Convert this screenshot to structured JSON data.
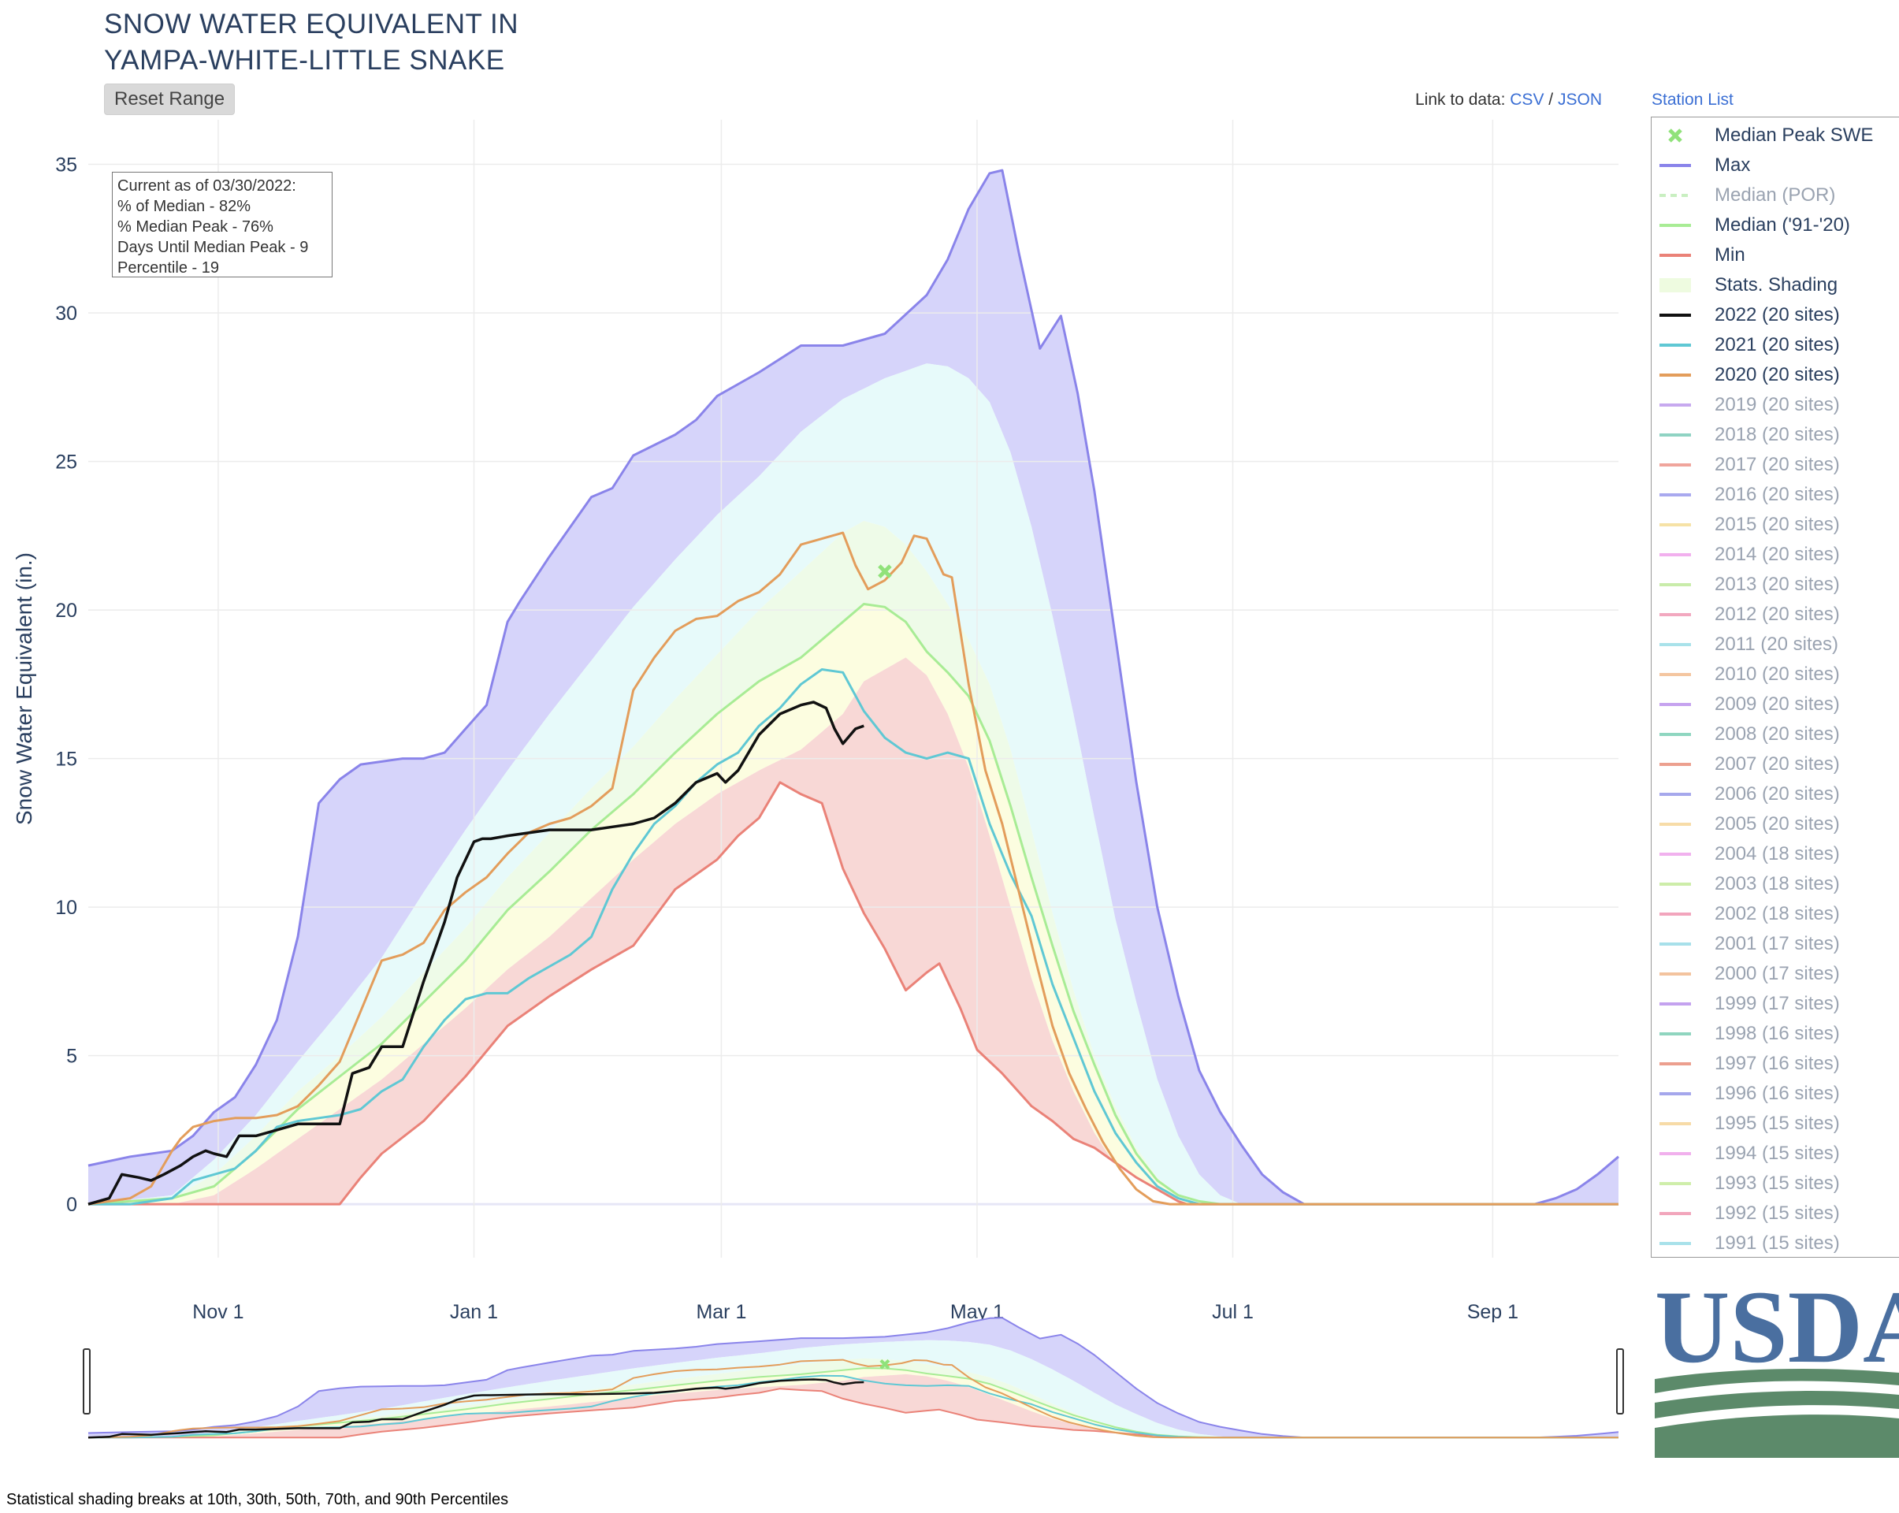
{
  "title_lines": [
    "SNOW WATER EQUIVALENT IN",
    "YAMPA-WHITE-LITTLE SNAKE"
  ],
  "reset_label": "Reset Range",
  "links": {
    "prefix": "Link to data:",
    "csv": "CSV",
    "sep": "/",
    "json": "JSON",
    "station_list": "Station List"
  },
  "stats": {
    "line1": "Current as of 03/30/2022:",
    "line2": "% of Median - 82%",
    "line3": "% Median Peak - 76%",
    "line4": "Days Until Median Peak - 9",
    "line5": "Percentile - 19"
  },
  "footnote": "Statistical shading breaks at 10th, 30th, 50th, 70th, and 90th Percentiles",
  "logo_text": "USDA",
  "colors": {
    "max": "#8a84ea",
    "min": "#ea8278",
    "median": "#a8ec95",
    "y2022": "#111111",
    "y2021": "#5fc8d4",
    "y2020": "#e39d5b",
    "shade_max": "#d6d4fa",
    "shade_90": "#e7fafa",
    "shade_70": "#eefbe8",
    "shade_50": "#fcfde0",
    "shade_30": "#f8d8d6",
    "usda_blue": "#4a6fa0",
    "usda_green": "#5c8a6a"
  },
  "legend": [
    {
      "label": "Median Peak SWE",
      "kind": "marker",
      "color": "#90e27a",
      "active": true
    },
    {
      "label": "Max",
      "kind": "line",
      "color": "#8a84ea",
      "active": true
    },
    {
      "label": "Median (POR)",
      "kind": "dash",
      "color": "#c9efc1",
      "active": false
    },
    {
      "label": "Median ('91-'20)",
      "kind": "line",
      "color": "#a8ec95",
      "active": true
    },
    {
      "label": "Min",
      "kind": "line",
      "color": "#ea8278",
      "active": true
    },
    {
      "label": "Stats. Shading",
      "kind": "fill",
      "color": "#eefbe0",
      "active": true
    },
    {
      "label": "2022 (20 sites)",
      "kind": "line",
      "color": "#111111",
      "active": true
    },
    {
      "label": "2021 (20 sites)",
      "kind": "line",
      "color": "#5fc8d4",
      "active": true
    },
    {
      "label": "2020 (20 sites)",
      "kind": "line",
      "color": "#e39d5b",
      "active": true
    },
    {
      "label": "2019 (20 sites)",
      "kind": "line",
      "color": "#c7a9ef",
      "active": false
    },
    {
      "label": "2018 (20 sites)",
      "kind": "line",
      "color": "#8fd3c3",
      "active": false
    },
    {
      "label": "2017 (20 sites)",
      "kind": "line",
      "color": "#f0a59c",
      "active": false
    },
    {
      "label": "2016 (20 sites)",
      "kind": "line",
      "color": "#a9a9ef",
      "active": false
    },
    {
      "label": "2015 (20 sites)",
      "kind": "line",
      "color": "#f6e2a6",
      "active": false
    },
    {
      "label": "2014 (20 sites)",
      "kind": "line",
      "color": "#f2b0ee",
      "active": false
    },
    {
      "label": "2013 (20 sites)",
      "kind": "line",
      "color": "#c9ecaa",
      "active": false
    },
    {
      "label": "2012 (20 sites)",
      "kind": "line",
      "color": "#f2a8bf",
      "active": false
    },
    {
      "label": "2011 (20 sites)",
      "kind": "line",
      "color": "#a9e2ea",
      "active": false
    },
    {
      "label": "2010 (20 sites)",
      "kind": "line",
      "color": "#f4c6a0",
      "active": false
    },
    {
      "label": "2009 (20 sites)",
      "kind": "line",
      "color": "#c6a3ef",
      "active": false
    },
    {
      "label": "2008 (20 sites)",
      "kind": "line",
      "color": "#8fd6c0",
      "active": false
    },
    {
      "label": "2007 (20 sites)",
      "kind": "line",
      "color": "#eca08f",
      "active": false
    },
    {
      "label": "2006 (20 sites)",
      "kind": "line",
      "color": "#a6a8ec",
      "active": false
    },
    {
      "label": "2005 (20 sites)",
      "kind": "line",
      "color": "#f7dca8",
      "active": false
    },
    {
      "label": "2004 (18 sites)",
      "kind": "line",
      "color": "#f1b1ee",
      "active": false
    },
    {
      "label": "2003 (18 sites)",
      "kind": "line",
      "color": "#cdeda9",
      "active": false
    },
    {
      "label": "2002 (18 sites)",
      "kind": "line",
      "color": "#f2a5bd",
      "active": false
    },
    {
      "label": "2001 (17 sites)",
      "kind": "line",
      "color": "#a7e0ea",
      "active": false
    },
    {
      "label": "2000 (17 sites)",
      "kind": "line",
      "color": "#f3c39e",
      "active": false
    },
    {
      "label": "1999 (17 sites)",
      "kind": "line",
      "color": "#c4a2ef",
      "active": false
    },
    {
      "label": "1998 (16 sites)",
      "kind": "line",
      "color": "#8fd5bf",
      "active": false
    },
    {
      "label": "1997 (16 sites)",
      "kind": "line",
      "color": "#ec9f8e",
      "active": false
    },
    {
      "label": "1996 (16 sites)",
      "kind": "line",
      "color": "#a5a7ec",
      "active": false
    },
    {
      "label": "1995 (15 sites)",
      "kind": "line",
      "color": "#f7dba7",
      "active": false
    },
    {
      "label": "1994 (15 sites)",
      "kind": "line",
      "color": "#f1b0ed",
      "active": false
    },
    {
      "label": "1993 (15 sites)",
      "kind": "line",
      "color": "#cfeeaa",
      "active": false
    },
    {
      "label": "1992 (15 sites)",
      "kind": "line",
      "color": "#f2a6bc",
      "active": false
    },
    {
      "label": "1991 (15 sites)",
      "kind": "line",
      "color": "#a8e1ea",
      "active": false
    }
  ],
  "chart_data": {
    "type": "line",
    "title": "SNOW WATER EQUIVALENT IN YAMPA-WHITE-LITTLE SNAKE",
    "xlabel": "",
    "ylabel": "Snow Water Equivalent (in.)",
    "x_domain_days": [
      0,
      365
    ],
    "ylim": [
      -1.8,
      36.5
    ],
    "yticks": [
      0,
      5,
      10,
      15,
      20,
      25,
      30,
      35
    ],
    "xticks": [
      {
        "label": "Nov 1",
        "day": 31
      },
      {
        "label": "Jan 1",
        "day": 92
      },
      {
        "label": "Mar 1",
        "day": 151
      },
      {
        "label": "May 1",
        "day": 212
      },
      {
        "label": "Jul 1",
        "day": 273
      },
      {
        "label": "Sep 1",
        "day": 335
      }
    ],
    "grid": true,
    "legend_position": "right",
    "median_peak": {
      "day": 190,
      "value": 21.3
    },
    "series": [
      {
        "name": "Max",
        "x": [
          0,
          10,
          20,
          25,
          30,
          35,
          40,
          45,
          50,
          55,
          60,
          65,
          70,
          75,
          80,
          85,
          90,
          95,
          100,
          103,
          110,
          115,
          120,
          125,
          130,
          140,
          145,
          150,
          160,
          170,
          180,
          190,
          200,
          205,
          210,
          215,
          218,
          222,
          227,
          232,
          236,
          240,
          245,
          250,
          255,
          260,
          265,
          270,
          275,
          280,
          285,
          290,
          295,
          305,
          315,
          325,
          345,
          350,
          355,
          360,
          365
        ],
        "y": [
          1.3,
          1.6,
          1.8,
          2.3,
          3.1,
          3.6,
          4.7,
          6.2,
          9.0,
          13.5,
          14.3,
          14.8,
          14.9,
          15.0,
          15.0,
          15.2,
          16.0,
          16.8,
          19.6,
          20.3,
          21.8,
          22.8,
          23.8,
          24.1,
          25.2,
          25.9,
          26.4,
          27.2,
          28.0,
          28.9,
          28.9,
          29.3,
          30.6,
          31.8,
          33.5,
          34.7,
          34.8,
          32.0,
          28.8,
          29.9,
          27.3,
          24.0,
          19.1,
          14.2,
          10.0,
          7.0,
          4.5,
          3.1,
          2.0,
          1.0,
          0.4,
          0.0,
          0.0,
          0.0,
          0.0,
          0.0,
          0.0,
          0.2,
          0.5,
          1.0,
          1.6
        ]
      },
      {
        "name": "Min",
        "x": [
          0,
          30,
          60,
          65,
          70,
          80,
          90,
          100,
          110,
          120,
          130,
          140,
          150,
          155,
          160,
          165,
          170,
          175,
          180,
          185,
          190,
          195,
          200,
          203,
          208,
          212,
          218,
          225,
          230,
          235,
          240,
          245,
          250,
          255,
          260,
          262,
          265,
          365
        ],
        "y": [
          0.0,
          0.0,
          0.0,
          0.9,
          1.7,
          2.8,
          4.3,
          6.0,
          7.0,
          7.9,
          8.7,
          10.6,
          11.6,
          12.4,
          13.0,
          14.2,
          13.8,
          13.5,
          11.3,
          9.8,
          8.6,
          7.2,
          7.8,
          8.1,
          6.6,
          5.2,
          4.4,
          3.3,
          2.8,
          2.2,
          1.9,
          1.4,
          0.9,
          0.5,
          0.1,
          0.0,
          0.0,
          0.0
        ]
      },
      {
        "name": "Median ('91-'20)",
        "x": [
          0,
          20,
          30,
          40,
          50,
          60,
          70,
          80,
          90,
          100,
          110,
          120,
          130,
          140,
          150,
          160,
          170,
          180,
          185,
          190,
          195,
          200,
          205,
          210,
          215,
          220,
          225,
          230,
          235,
          240,
          245,
          250,
          255,
          260,
          265,
          270,
          275,
          365
        ],
        "y": [
          0.0,
          0.2,
          0.6,
          1.8,
          3.2,
          4.3,
          5.4,
          6.8,
          8.2,
          9.9,
          11.2,
          12.6,
          13.8,
          15.2,
          16.5,
          17.6,
          18.4,
          19.6,
          20.2,
          20.1,
          19.6,
          18.6,
          17.9,
          17.1,
          15.6,
          13.4,
          11.0,
          8.7,
          6.5,
          4.7,
          3.0,
          1.7,
          0.8,
          0.3,
          0.1,
          0.0,
          0.0,
          0.0
        ]
      },
      {
        "name": "2022 (20 sites)",
        "x": [
          0,
          5,
          8,
          12,
          15,
          18,
          22,
          25,
          28,
          30,
          33,
          36,
          40,
          45,
          50,
          55,
          60,
          63,
          67,
          70,
          75,
          80,
          85,
          88,
          92,
          94,
          96,
          100,
          105,
          110,
          115,
          120,
          125,
          130,
          135,
          140,
          145,
          150,
          152,
          155,
          160,
          165,
          170,
          173,
          176,
          178,
          180,
          183,
          185
        ],
        "y": [
          0.0,
          0.2,
          1.0,
          0.9,
          0.8,
          1.0,
          1.3,
          1.6,
          1.8,
          1.7,
          1.6,
          2.3,
          2.3,
          2.5,
          2.7,
          2.7,
          2.7,
          4.4,
          4.6,
          5.3,
          5.3,
          7.5,
          9.5,
          11.0,
          12.2,
          12.3,
          12.3,
          12.4,
          12.5,
          12.6,
          12.6,
          12.6,
          12.7,
          12.8,
          13.0,
          13.5,
          14.2,
          14.5,
          14.2,
          14.6,
          15.8,
          16.5,
          16.8,
          16.9,
          16.7,
          16.0,
          15.5,
          16.0,
          16.1
        ]
      },
      {
        "name": "2021 (20 sites)",
        "x": [
          0,
          10,
          20,
          25,
          30,
          35,
          40,
          45,
          50,
          55,
          60,
          65,
          70,
          75,
          80,
          85,
          90,
          95,
          100,
          105,
          110,
          115,
          120,
          125,
          130,
          135,
          140,
          145,
          150,
          155,
          160,
          165,
          170,
          175,
          180,
          185,
          190,
          195,
          200,
          205,
          210,
          215,
          220,
          225,
          230,
          235,
          240,
          245,
          250,
          255,
          260,
          265,
          270,
          365
        ],
        "y": [
          0.0,
          0.0,
          0.2,
          0.8,
          1.0,
          1.2,
          1.8,
          2.6,
          2.8,
          2.9,
          3.0,
          3.2,
          3.8,
          4.2,
          5.3,
          6.2,
          6.9,
          7.1,
          7.1,
          7.6,
          8.0,
          8.4,
          9.0,
          10.6,
          11.8,
          12.8,
          13.4,
          14.2,
          14.8,
          15.2,
          16.1,
          16.7,
          17.5,
          18.0,
          17.9,
          16.6,
          15.7,
          15.2,
          15.0,
          15.2,
          15.0,
          12.8,
          11.1,
          9.7,
          7.4,
          5.6,
          3.8,
          2.4,
          1.4,
          0.6,
          0.2,
          0.0,
          0.0,
          0.0
        ]
      },
      {
        "name": "2020 (20 sites)",
        "x": [
          0,
          10,
          15,
          20,
          22,
          25,
          30,
          35,
          40,
          45,
          50,
          55,
          60,
          65,
          70,
          75,
          80,
          85,
          90,
          95,
          100,
          105,
          110,
          115,
          120,
          125,
          130,
          135,
          140,
          145,
          150,
          155,
          160,
          165,
          170,
          175,
          180,
          183,
          186,
          190,
          194,
          197,
          200,
          204,
          206,
          210,
          214,
          218,
          222,
          226,
          230,
          234,
          238,
          242,
          246,
          250,
          254,
          258,
          262,
          266,
          270,
          365
        ],
        "y": [
          0.0,
          0.2,
          0.6,
          1.8,
          2.2,
          2.6,
          2.8,
          2.9,
          2.9,
          3.0,
          3.3,
          4.0,
          4.8,
          6.5,
          8.2,
          8.4,
          8.8,
          9.9,
          10.5,
          11.0,
          11.8,
          12.5,
          12.8,
          13.0,
          13.4,
          14.0,
          17.3,
          18.4,
          19.3,
          19.7,
          19.8,
          20.3,
          20.6,
          21.2,
          22.2,
          22.4,
          22.6,
          21.5,
          20.7,
          21.0,
          21.6,
          22.5,
          22.4,
          21.2,
          21.1,
          17.5,
          14.6,
          12.8,
          10.5,
          8.2,
          6.0,
          4.4,
          3.2,
          2.1,
          1.2,
          0.5,
          0.1,
          0.0,
          0.0,
          0.0,
          0.0,
          0.0
        ]
      }
    ],
    "shading": [
      {
        "band": "max-90th",
        "upper": "Max",
        "note": "purple"
      },
      {
        "band": "90th-70th",
        "note": "light cyan"
      },
      {
        "band": "70th-50th",
        "note": "light green"
      },
      {
        "band": "50th-30th",
        "note": "light yellow"
      },
      {
        "band": "30th-min",
        "note": "light red"
      }
    ],
    "p90": {
      "x": [
        0,
        20,
        30,
        40,
        50,
        60,
        70,
        80,
        90,
        100,
        110,
        120,
        130,
        140,
        150,
        160,
        170,
        180,
        190,
        200,
        205,
        210,
        215,
        220,
        225,
        230,
        235,
        240,
        245,
        250,
        255,
        260,
        265,
        270,
        275,
        280,
        285,
        365
      ],
      "y": [
        0.0,
        0.3,
        1.5,
        3.0,
        4.8,
        6.5,
        8.3,
        10.5,
        12.6,
        14.6,
        16.5,
        18.3,
        20.1,
        21.7,
        23.2,
        24.5,
        26.0,
        27.1,
        27.8,
        28.3,
        28.2,
        27.8,
        27.0,
        25.3,
        22.8,
        19.8,
        16.5,
        13.0,
        9.6,
        6.8,
        4.2,
        2.3,
        1.0,
        0.3,
        0.0,
        0.0,
        0.0,
        0.0
      ]
    },
    "p70": {
      "x": [
        0,
        20,
        30,
        40,
        50,
        60,
        70,
        80,
        90,
        100,
        110,
        120,
        130,
        140,
        150,
        160,
        170,
        180,
        185,
        190,
        195,
        200,
        205,
        210,
        215,
        220,
        225,
        230,
        235,
        240,
        245,
        250,
        255,
        260,
        265,
        270,
        365
      ],
      "y": [
        0.0,
        0.2,
        1.0,
        2.3,
        3.8,
        5.0,
        6.3,
        7.8,
        9.3,
        11.0,
        12.5,
        14.0,
        15.4,
        17.0,
        18.5,
        20.0,
        21.3,
        22.6,
        23.0,
        22.8,
        22.2,
        21.3,
        20.2,
        19.0,
        17.5,
        15.3,
        12.6,
        9.8,
        7.2,
        5.0,
        3.3,
        1.9,
        0.9,
        0.3,
        0.0,
        0.0,
        0.0
      ]
    },
    "p30": {
      "x": [
        0,
        20,
        30,
        40,
        50,
        60,
        70,
        80,
        90,
        100,
        110,
        120,
        130,
        140,
        150,
        160,
        170,
        180,
        185,
        190,
        195,
        200,
        205,
        210,
        215,
        220,
        225,
        230,
        235,
        240,
        245,
        250,
        255,
        260,
        265,
        365
      ],
      "y": [
        0.0,
        0.0,
        0.3,
        1.2,
        2.2,
        3.2,
        4.2,
        5.4,
        6.6,
        7.9,
        9.0,
        10.3,
        11.6,
        12.8,
        13.8,
        14.6,
        15.3,
        16.5,
        17.6,
        18.0,
        18.4,
        17.8,
        16.5,
        14.7,
        12.4,
        10.0,
        7.6,
        5.5,
        3.8,
        2.4,
        1.3,
        0.6,
        0.2,
        0.0,
        0.0,
        0.0
      ]
    }
  }
}
